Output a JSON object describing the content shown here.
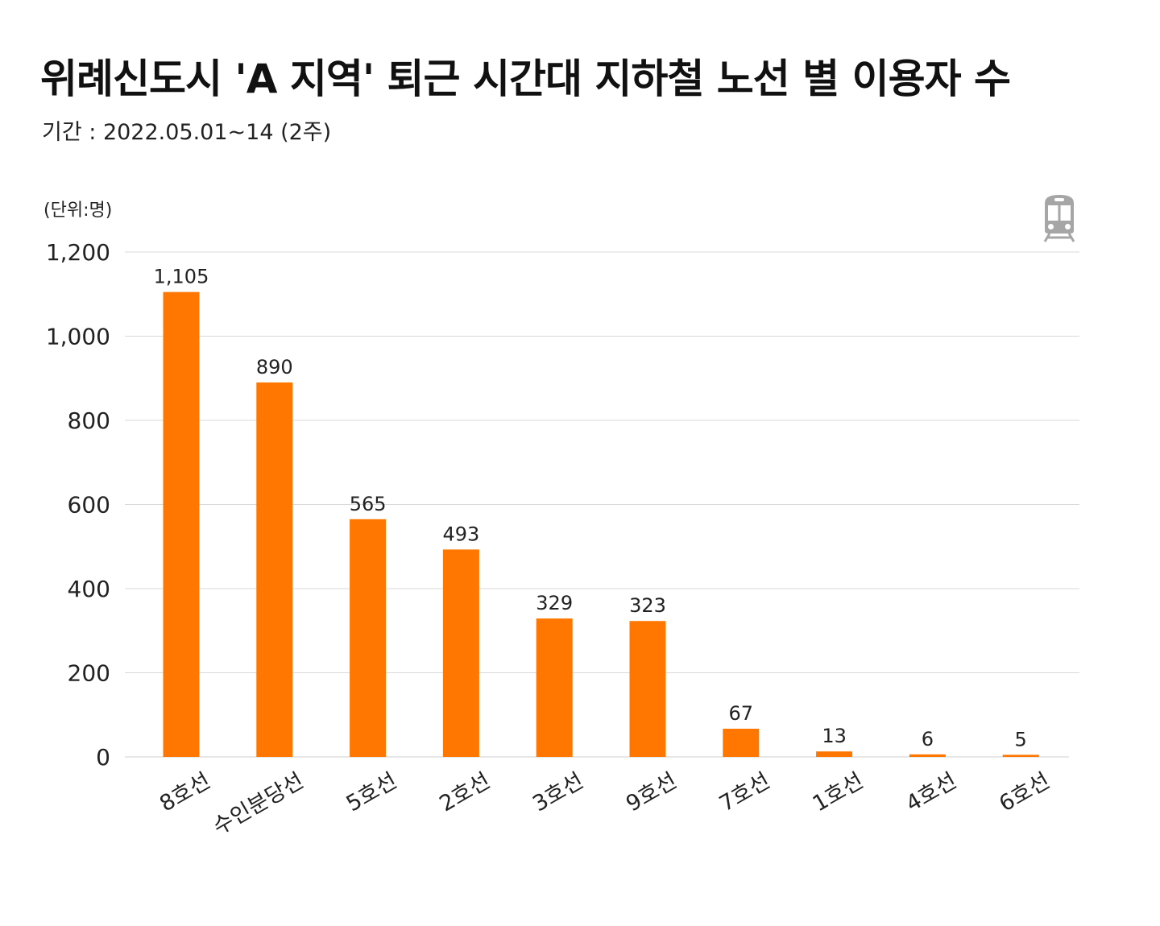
{
  "chart_data": {
    "type": "bar",
    "title": "위례신도시 'A 지역' 퇴근 시간대 지하철 노선 별 이용자 수",
    "subtitle": "기간 : 2022.05.01~14 (2주)",
    "unit_label": "(단위:명)",
    "categories": [
      "8호선",
      "수인분당선",
      "5호선",
      "2호선",
      "3호선",
      "9호선",
      "7호선",
      "1호선",
      "4호선",
      "6호선"
    ],
    "values": [
      1105,
      890,
      565,
      493,
      329,
      323,
      67,
      13,
      6,
      5
    ],
    "data_labels": [
      "1,105",
      "890",
      "565",
      "493",
      "329",
      "323",
      "67",
      "13",
      "6",
      "5"
    ],
    "ylim": [
      0,
      1200
    ],
    "yticks": [
      0,
      200,
      400,
      600,
      800,
      1000,
      1200
    ],
    "ytick_labels": [
      "0",
      "200",
      "400",
      "600",
      "800",
      "1,000",
      "1,200"
    ],
    "xlabel": "",
    "ylabel": "",
    "grid": true,
    "legend": "none",
    "colors": {
      "bar": "#FF7700",
      "grid": "#d9d9d9",
      "icon": "#a6a6a6"
    },
    "icon": "subway-train-icon"
  }
}
